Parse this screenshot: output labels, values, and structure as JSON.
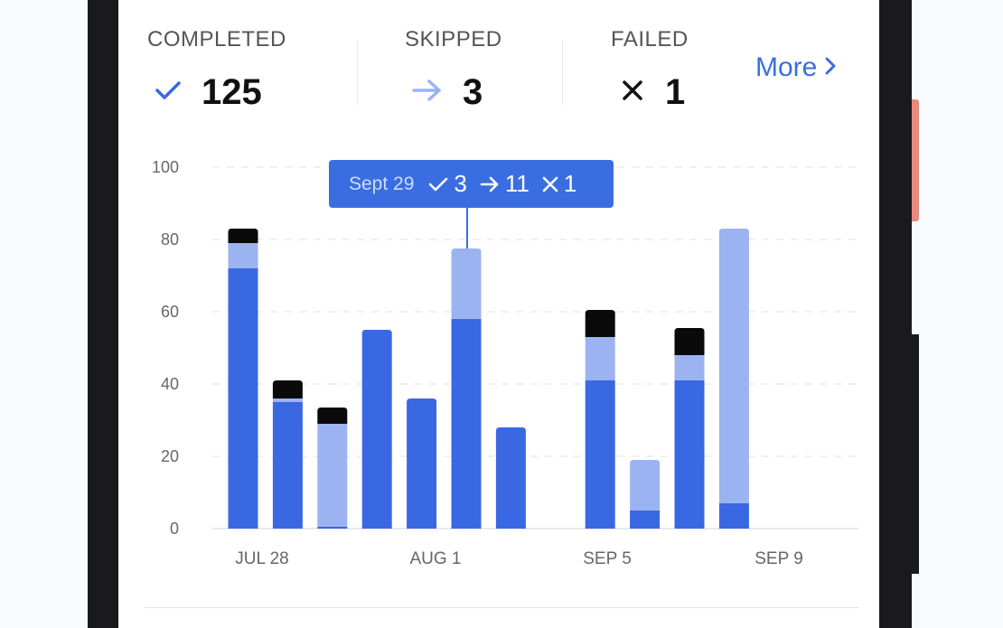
{
  "stats": {
    "completed": {
      "label": "COMPLETED",
      "value": "125"
    },
    "skipped": {
      "label": "SKIPPED",
      "value": "3"
    },
    "failed": {
      "label": "FAILED",
      "value": "1"
    }
  },
  "more_link": "More",
  "icons": {
    "completed": "check-icon",
    "skipped": "arrow-right-icon",
    "failed": "cross-icon",
    "more": "chevron-right-icon"
  },
  "colors": {
    "completed": "#3a68e3",
    "skipped": "#9cb3f2",
    "failed": "#0a0a0a",
    "accent": "#3a6ee0"
  },
  "tooltip": {
    "date": "Sept 29",
    "completed": "3",
    "skipped": "11",
    "failed": "1"
  },
  "chart_data": {
    "type": "bar",
    "stacked": true,
    "x_tick_labels": [
      "JUL 28",
      "AUG 1",
      "SEP 5",
      "SEP 9"
    ],
    "y_ticks": [
      0,
      20,
      40,
      60,
      80,
      100
    ],
    "ylim": [
      0,
      100
    ],
    "grid": true,
    "series": [
      {
        "key": "completed",
        "values": [
          72,
          35,
          0.5,
          55,
          36,
          58,
          28,
          0,
          41,
          5,
          41,
          7
        ]
      },
      {
        "key": "skipped",
        "values": [
          7,
          1,
          28.5,
          0,
          0,
          19.5,
          0,
          0,
          12,
          14,
          7,
          76
        ]
      },
      {
        "key": "failed",
        "values": [
          4,
          5,
          4.5,
          0,
          0,
          0,
          0,
          0,
          7.5,
          0,
          7.5,
          0
        ]
      }
    ]
  }
}
